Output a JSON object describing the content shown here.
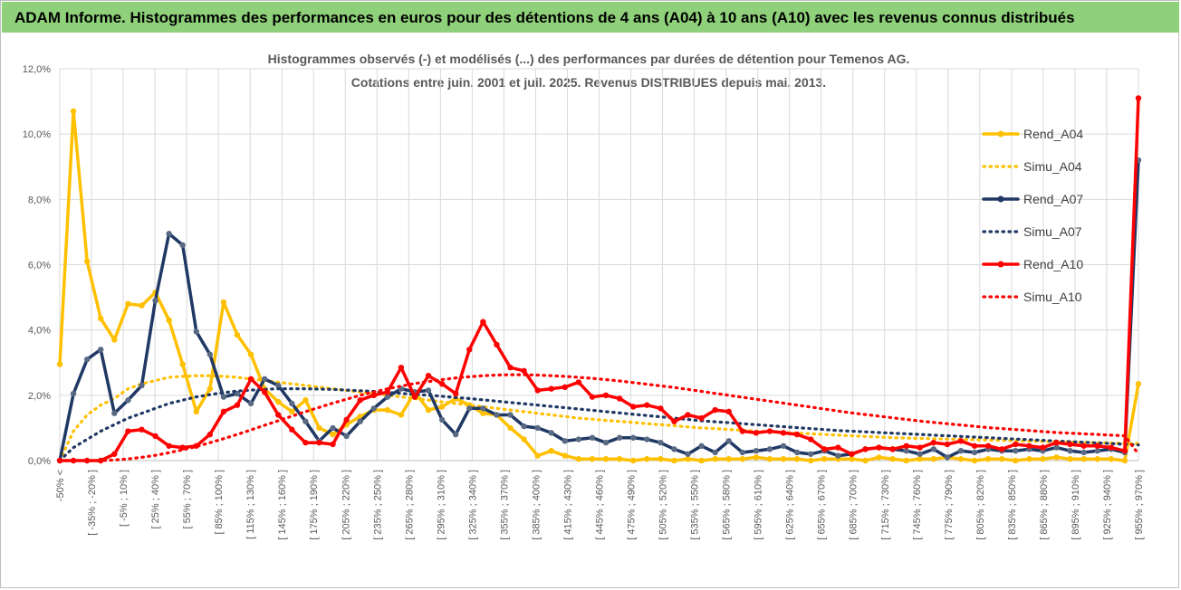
{
  "banner": {
    "title": "ADAM Informe. Histogrammes des performances en euros pour des détentions de 4 ans (A04) à 10 ans (A10) avec les revenus connus distribués"
  },
  "chart_data": {
    "type": "line",
    "title": "Histogrammes observés (-) et modélisés (...) des performances par durées de détention pour Temenos AG.",
    "subtitle": "Cotations entre juin. 2001 et juil. 2025. Revenus DISTRIBUES depuis mai. 2013.",
    "xlabel": "",
    "ylabel": "",
    "ylim": [
      0,
      12
    ],
    "yticks": [
      "0,0%",
      "2,0%",
      "4,0%",
      "6,0%",
      "8,0%",
      "10,0%",
      "12,0%"
    ],
    "x_tick_labels": [
      "-50% <",
      "[ -35% ; -20% ]",
      "[ -5% ; 10% ]",
      "[ 25% ; 40% ]",
      "[ 55% ; 70% ]",
      "[ 85% ; 100% ]",
      "[ 115% ; 130% ]",
      "[ 145% ; 160% ]",
      "[ 175% ; 190% ]",
      "[ 205% ; 220% ]",
      "[ 235% ; 250% ]",
      "[ 265% ; 280% ]",
      "[ 295% ; 310% ]",
      "[ 325% ; 340% ]",
      "[ 355% ; 370% ]",
      "[ 385% ; 400% ]",
      "[ 415% ; 430% ]",
      "[ 445% ; 460% ]",
      "[ 475% ; 490% ]",
      "[ 505% ; 520% ]",
      "[ 535% ; 550% ]",
      "[ 565% ; 580% ]",
      "[ 595% ; 610% ]",
      "[ 625% ; 640% ]",
      "[ 655% ; 670% ]",
      "[ 685% ; 700% ]",
      "[ 715% ; 730% ]",
      "[ 745% ; 760% ]",
      "[ 775% ; 790% ]",
      "[ 805% ; 820% ]",
      "[ 835% ; 850% ]",
      "[ 865% ; 880% ]",
      "[ 895% ; 910% ]",
      "[ 925% ; 940% ]",
      "[ 955% ; 970% ]"
    ],
    "grid": true,
    "legend_position": "right",
    "series": [
      {
        "name": "Rend_A04",
        "color": "#ffc000",
        "style": "solid",
        "markers": true,
        "values": [
          2.95,
          10.7,
          6.1,
          4.35,
          3.7,
          4.8,
          4.75,
          5.15,
          4.3,
          2.95,
          1.5,
          2.2,
          4.85,
          3.85,
          3.25,
          2.2,
          1.8,
          1.5,
          1.85,
          1.0,
          0.8,
          1.1,
          1.35,
          1.55,
          1.55,
          1.4,
          2.1,
          1.55,
          1.65,
          1.9,
          1.7,
          1.45,
          1.4,
          1.0,
          0.65,
          0.15,
          0.3,
          0.15,
          0.05,
          0.05,
          0.05,
          0.05,
          0.0,
          0.05,
          0.05,
          0.0,
          0.05,
          0.0,
          0.05,
          0.05,
          0.05,
          0.1,
          0.05,
          0.05,
          0.05,
          0.0,
          0.05,
          0.05,
          0.05,
          0.0,
          0.1,
          0.05,
          0.0,
          0.05,
          0.05,
          0.1,
          0.05,
          0.0,
          0.05,
          0.05,
          0.0,
          0.05,
          0.05,
          0.1,
          0.05,
          0.05,
          0.05,
          0.05,
          0.0,
          2.35
        ]
      },
      {
        "name": "Simu_A04",
        "color": "#ffc000",
        "style": "dotted",
        "markers": false,
        "values": [
          0.0,
          0.9,
          1.4,
          1.7,
          1.9,
          2.2,
          2.35,
          2.45,
          2.55,
          2.58,
          2.6,
          2.6,
          2.58,
          2.55,
          2.5,
          2.45,
          2.4,
          2.35,
          2.3,
          2.25,
          2.2,
          2.15,
          2.1,
          2.05,
          2.0,
          1.95,
          1.9,
          1.85,
          1.8,
          1.75,
          1.7,
          1.65,
          1.6,
          1.55,
          1.5,
          1.45,
          1.4,
          1.35,
          1.3,
          1.27,
          1.23,
          1.2,
          1.17,
          1.13,
          1.1,
          1.07,
          1.03,
          1.0,
          0.98,
          0.95,
          0.93,
          0.9,
          0.88,
          0.86,
          0.84,
          0.82,
          0.8,
          0.78,
          0.76,
          0.74,
          0.72,
          0.7,
          0.69,
          0.68,
          0.67,
          0.66,
          0.65,
          0.64,
          0.63,
          0.62,
          0.61,
          0.6,
          0.59,
          0.58,
          0.57,
          0.56,
          0.55,
          0.54,
          0.53,
          0.52
        ]
      },
      {
        "name": "Rend_A07",
        "color": "#1f3864",
        "style": "solid",
        "markers": true,
        "values": [
          0.0,
          2.05,
          3.1,
          3.4,
          1.45,
          1.85,
          2.3,
          4.9,
          6.95,
          6.6,
          3.95,
          3.25,
          1.95,
          2.05,
          1.75,
          2.5,
          2.3,
          1.75,
          1.2,
          0.6,
          1.0,
          0.75,
          1.2,
          1.6,
          1.95,
          2.2,
          2.1,
          2.15,
          1.25,
          0.8,
          1.6,
          1.6,
          1.4,
          1.4,
          1.05,
          1.0,
          0.85,
          0.6,
          0.65,
          0.7,
          0.55,
          0.7,
          0.7,
          0.65,
          0.55,
          0.35,
          0.2,
          0.45,
          0.25,
          0.6,
          0.25,
          0.3,
          0.35,
          0.45,
          0.25,
          0.2,
          0.3,
          0.15,
          0.2,
          0.35,
          0.4,
          0.35,
          0.3,
          0.2,
          0.35,
          0.1,
          0.3,
          0.25,
          0.35,
          0.3,
          0.3,
          0.35,
          0.3,
          0.4,
          0.3,
          0.25,
          0.3,
          0.35,
          0.25,
          9.2
        ]
      },
      {
        "name": "Simu_A07",
        "color": "#1f3864",
        "style": "dotted",
        "markers": false,
        "values": [
          0.0,
          0.4,
          0.65,
          0.9,
          1.1,
          1.3,
          1.45,
          1.6,
          1.75,
          1.85,
          1.95,
          2.02,
          2.08,
          2.13,
          2.16,
          2.18,
          2.2,
          2.2,
          2.2,
          2.19,
          2.18,
          2.16,
          2.14,
          2.12,
          2.09,
          2.06,
          2.03,
          2.0,
          1.97,
          1.93,
          1.9,
          1.86,
          1.82,
          1.78,
          1.74,
          1.7,
          1.66,
          1.62,
          1.58,
          1.54,
          1.5,
          1.46,
          1.42,
          1.38,
          1.34,
          1.3,
          1.26,
          1.22,
          1.19,
          1.16,
          1.13,
          1.1,
          1.07,
          1.04,
          1.01,
          0.98,
          0.95,
          0.92,
          0.9,
          0.88,
          0.86,
          0.84,
          0.82,
          0.8,
          0.78,
          0.76,
          0.74,
          0.72,
          0.7,
          0.68,
          0.66,
          0.64,
          0.62,
          0.6,
          0.58,
          0.56,
          0.54,
          0.52,
          0.5,
          0.48
        ]
      },
      {
        "name": "Rend_A10",
        "color": "#ff0000",
        "style": "solid",
        "markers": true,
        "values": [
          0.0,
          0.0,
          0.0,
          0.0,
          0.2,
          0.9,
          0.95,
          0.75,
          0.45,
          0.4,
          0.45,
          0.8,
          1.5,
          1.7,
          2.5,
          2.1,
          1.4,
          0.95,
          0.55,
          0.55,
          0.5,
          1.25,
          1.85,
          2.0,
          2.1,
          2.85,
          1.95,
          2.6,
          2.35,
          2.05,
          3.4,
          4.25,
          3.55,
          2.85,
          2.75,
          2.15,
          2.2,
          2.25,
          2.4,
          1.95,
          2.0,
          1.9,
          1.65,
          1.7,
          1.6,
          1.2,
          1.4,
          1.3,
          1.55,
          1.5,
          0.9,
          0.85,
          0.9,
          0.85,
          0.8,
          0.65,
          0.35,
          0.4,
          0.2,
          0.35,
          0.4,
          0.35,
          0.45,
          0.4,
          0.55,
          0.5,
          0.6,
          0.45,
          0.45,
          0.35,
          0.5,
          0.45,
          0.4,
          0.55,
          0.5,
          0.45,
          0.45,
          0.4,
          0.3,
          11.1
        ]
      },
      {
        "name": "Simu_A10",
        "color": "#ff0000",
        "style": "dotted",
        "markers": false,
        "values": [
          0.0,
          0.0,
          0.0,
          0.0,
          0.02,
          0.05,
          0.1,
          0.16,
          0.24,
          0.33,
          0.43,
          0.55,
          0.67,
          0.8,
          0.94,
          1.08,
          1.22,
          1.36,
          1.5,
          1.63,
          1.76,
          1.88,
          2.0,
          2.1,
          2.2,
          2.28,
          2.36,
          2.42,
          2.48,
          2.53,
          2.57,
          2.6,
          2.62,
          2.63,
          2.63,
          2.62,
          2.6,
          2.58,
          2.55,
          2.52,
          2.48,
          2.44,
          2.39,
          2.34,
          2.29,
          2.24,
          2.18,
          2.12,
          2.06,
          2.0,
          1.94,
          1.88,
          1.82,
          1.76,
          1.7,
          1.64,
          1.58,
          1.52,
          1.46,
          1.41,
          1.36,
          1.31,
          1.26,
          1.21,
          1.17,
          1.13,
          1.09,
          1.05,
          1.01,
          0.98,
          0.95,
          0.92,
          0.89,
          0.86,
          0.84,
          0.82,
          0.8,
          0.78,
          0.76,
          0.2
        ]
      }
    ]
  }
}
